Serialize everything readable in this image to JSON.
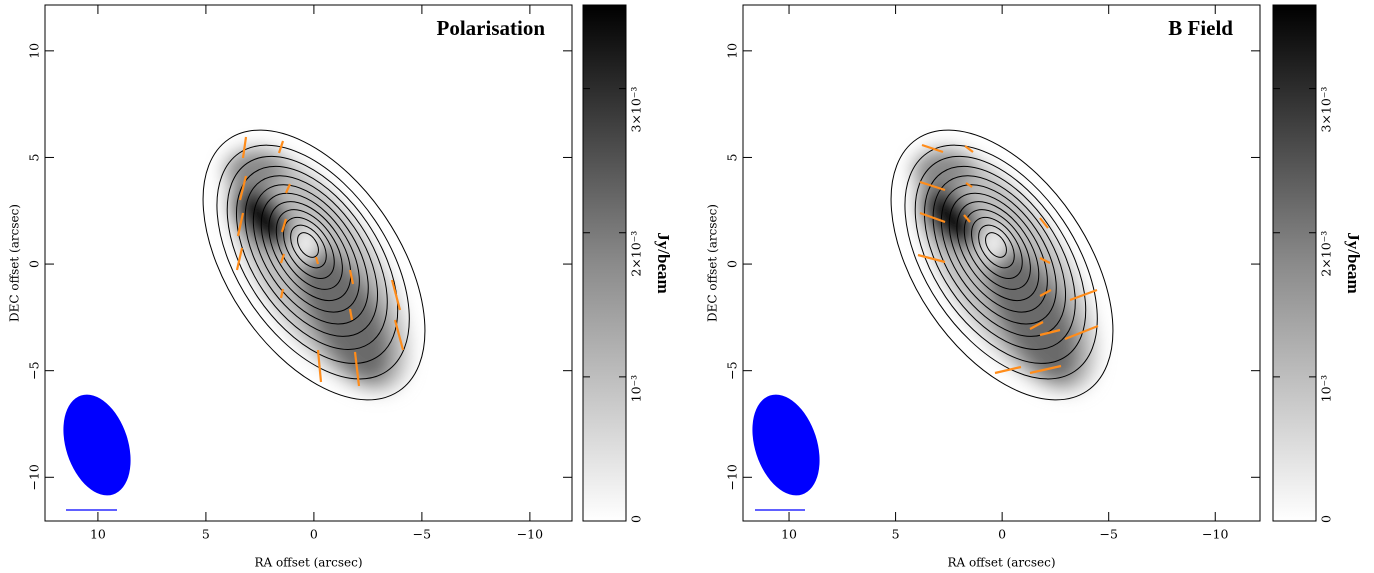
{
  "chart_data": [
    {
      "type": "image",
      "title": "Polarisation",
      "xlabel": "RA offset (arcsec)",
      "ylabel": "DEC offset (arcsec)",
      "xlim": [
        12.45,
        -11.95
      ],
      "ylim": [
        -12.05,
        12.15
      ],
      "xticks": [
        10,
        5,
        0,
        {
          "value": -5,
          "label": "−5"
        },
        {
          "value": -10,
          "label": "−10"
        }
      ],
      "yticks": [
        {
          "value": -10,
          "label": "−10"
        },
        {
          "value": -5,
          "label": "−5"
        },
        0,
        5,
        10
      ],
      "colorbar": {
        "label": "Jy/beam",
        "lim": [
          0,
          0.00358
        ],
        "ticks": [
          0,
          {
            "value": 0.001,
            "label": "10⁻³"
          },
          {
            "value": 0.002,
            "label": "2×10⁻³"
          },
          {
            "value": 0.003,
            "label": "3×10⁻³"
          }
        ]
      }
    },
    {
      "type": "image",
      "title": "B Field",
      "xlabel": "RA offset (arcsec)",
      "ylabel": "DEC offset (arcsec)",
      "xlim": [
        12.16,
        -12.1
      ],
      "ylim": [
        -12.05,
        12.15
      ],
      "xticks": [
        10,
        5,
        0,
        {
          "value": -5,
          "label": "−5"
        },
        {
          "value": -10,
          "label": "−10"
        }
      ],
      "yticks": [
        {
          "value": -10,
          "label": "−10"
        },
        {
          "value": -5,
          "label": "−5"
        },
        0,
        5,
        10
      ],
      "colorbar": {
        "label": "Jy/beam",
        "lim": [
          0,
          0.00358
        ],
        "ticks": [
          0,
          {
            "value": 0.001,
            "label": "10⁻³"
          },
          {
            "value": 0.002,
            "label": "2×10⁻³"
          },
          {
            "value": 0.003,
            "label": "3×10⁻³"
          }
        ]
      }
    }
  ]
}
